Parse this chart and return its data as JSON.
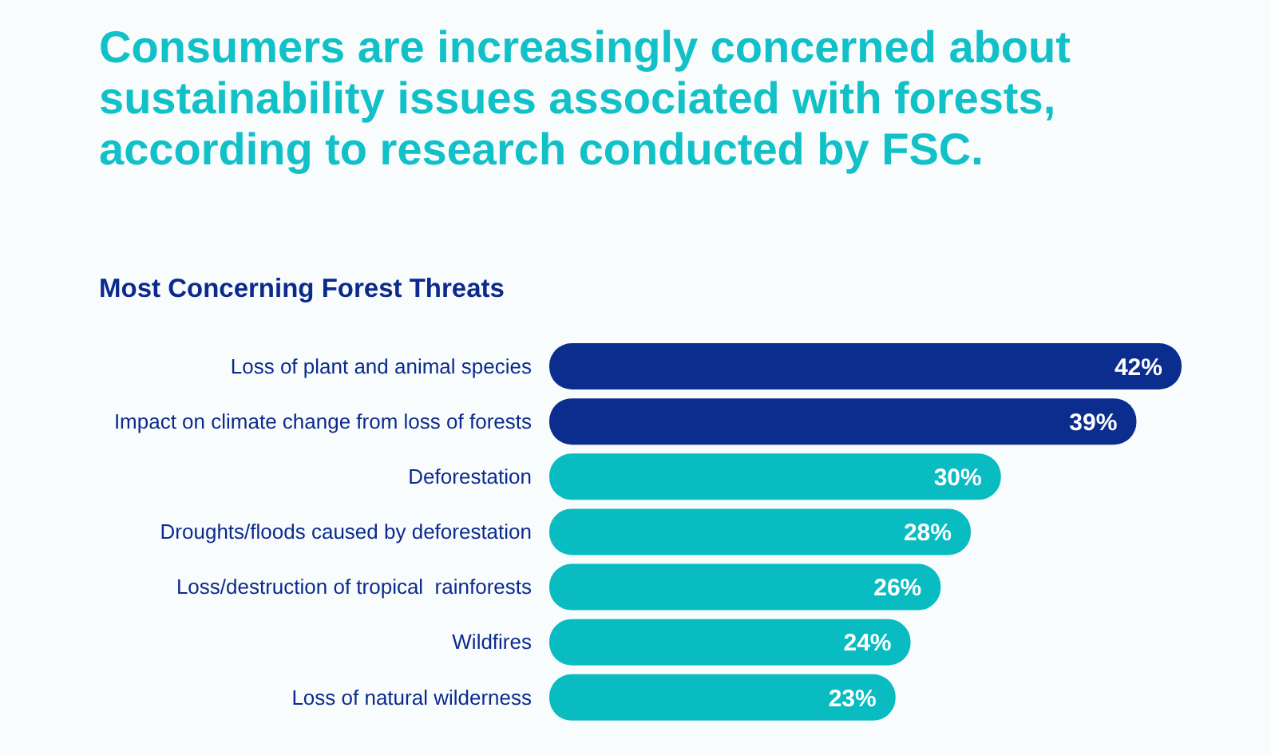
{
  "chart_data": {
    "type": "bar",
    "orientation": "horizontal",
    "title": "Consumers are increasingly concerned about sustainability issues associated with forests, according to research conducted by FSC.",
    "subtitle": "Most Concerning Forest Threats",
    "categories": [
      "Loss of plant and animal species",
      "Impact on climate change from loss of forests",
      "Deforestation",
      "Droughts/floods caused by deforestation",
      "Loss/destruction of tropical  rainforests",
      "Wildfires",
      "Loss of natural wilderness"
    ],
    "values": [
      42,
      39,
      30,
      28,
      26,
      24,
      23
    ],
    "colors": [
      "#0b2d8e",
      "#0b2d8e",
      "#08bcc1",
      "#08bcc1",
      "#08bcc1",
      "#08bcc1",
      "#08bcc1"
    ],
    "value_labels": [
      "42%",
      "39%",
      "30%",
      "28%",
      "26%",
      "24%",
      "23%"
    ]
  }
}
